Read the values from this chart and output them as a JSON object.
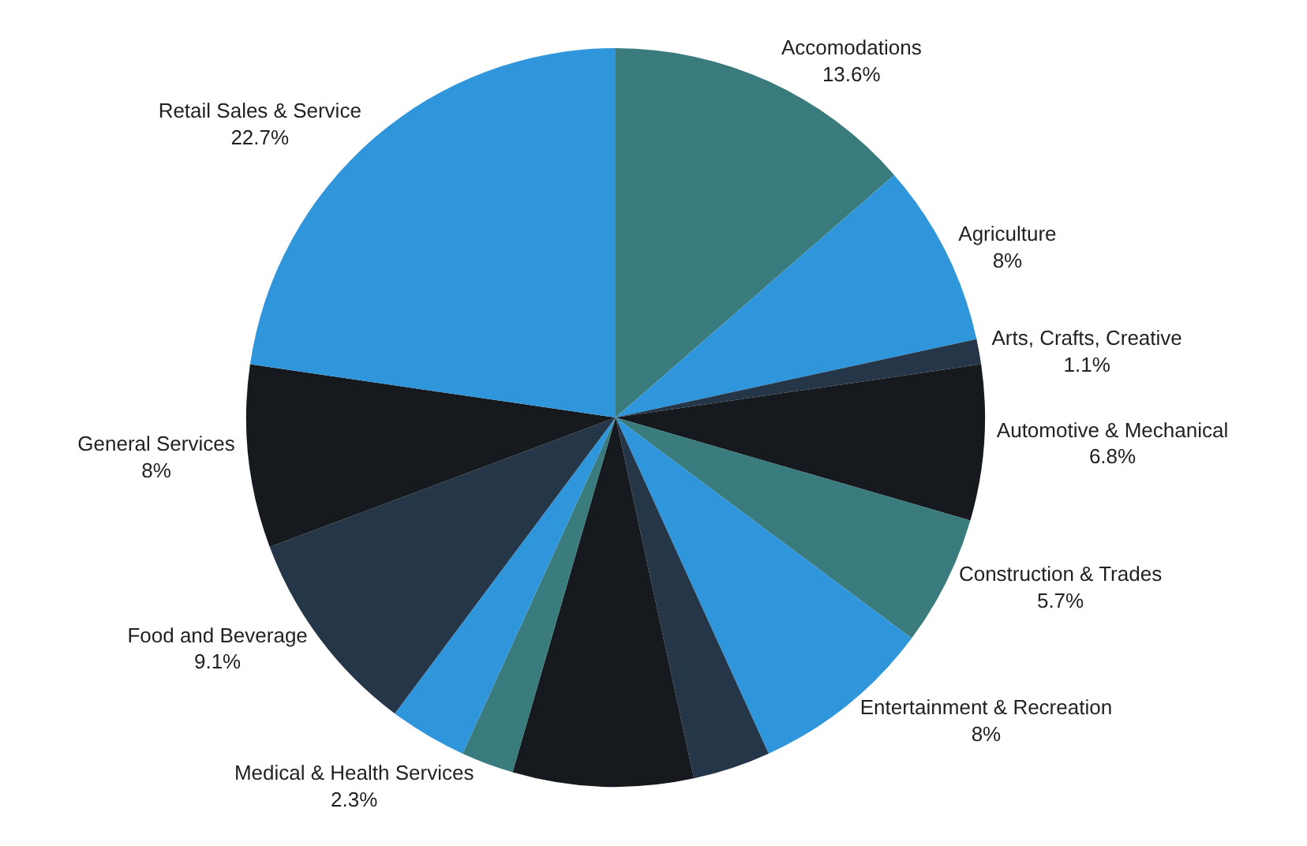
{
  "chart_data": {
    "type": "pie",
    "categories": [
      "Accomodations",
      "Agriculture",
      "Arts, Crafts, Creative",
      "Automotive & Mechanical",
      "Construction & Trades",
      "Entertainment & Recreation",
      null,
      null,
      "Medical & Health Services",
      null,
      "Food and Beverage",
      "General Services",
      "Retail Sales & Service"
    ],
    "values": [
      13.6,
      8,
      1.1,
      6.8,
      5.7,
      8,
      3.4,
      7.9,
      2.3,
      3.4,
      9.1,
      8,
      22.7
    ],
    "value_labels": [
      "13.6%",
      "8%",
      "1.1%",
      "6.8%",
      "5.7%",
      "8%",
      null,
      null,
      "2.3%",
      null,
      "9.1%",
      "8%",
      "22.7%"
    ],
    "colors": [
      "#3a7b7e",
      "#2f96dc",
      "#243647",
      "#16191d",
      "#3a7b7e",
      "#2f96dc",
      "#243647",
      "#16191d",
      "#3a7b7e",
      "#2f96dc",
      "#243647",
      "#16191d",
      "#2f96dc"
    ],
    "legend": false
  }
}
